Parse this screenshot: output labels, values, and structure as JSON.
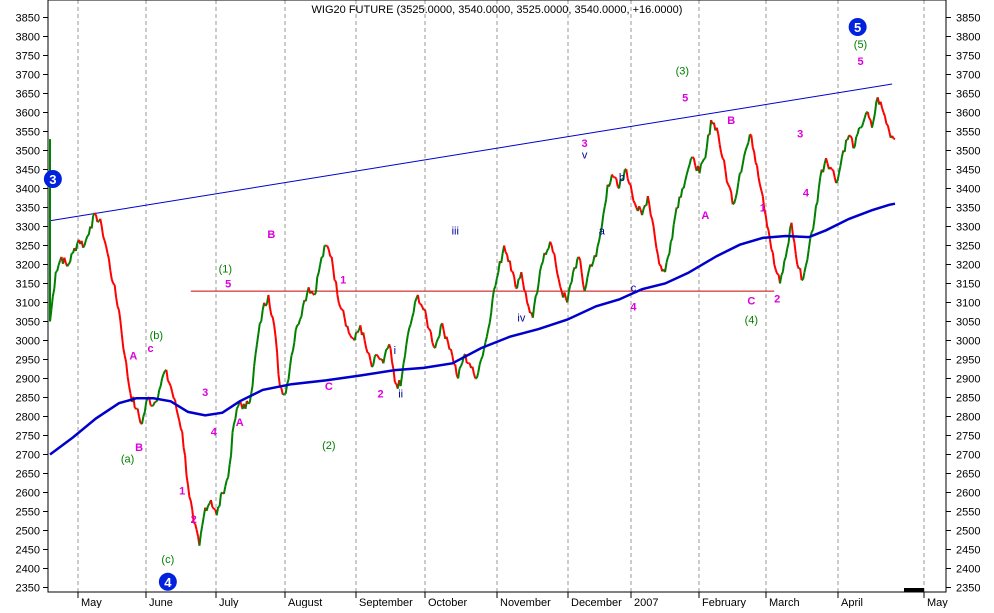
{
  "chart_data": {
    "type": "line",
    "title": "WIG20 FUTURE (3525.0000, 3540.0000, 3525.0000, 3540.0000, +16.0000)",
    "ylim": [
      2325,
      3880
    ],
    "y_ticks": [
      2350,
      2400,
      2450,
      2500,
      2550,
      2600,
      2650,
      2700,
      2750,
      2800,
      2850,
      2900,
      2950,
      3000,
      3050,
      3100,
      3150,
      3200,
      3250,
      3300,
      3350,
      3400,
      3450,
      3500,
      3550,
      3600,
      3650,
      3700,
      3750,
      3800,
      3850
    ],
    "x_ticks": [
      "May",
      "June",
      "July",
      "August",
      "September",
      "October",
      "November",
      "December",
      "2007",
      "February",
      "March",
      "April",
      "May"
    ],
    "grid": true,
    "colors": {
      "up": "#008000",
      "down": "#ff0000",
      "moving_average": "#0000cc",
      "trendline": "#0000cc",
      "support": "#cc0000",
      "magenta": "#dd00dd",
      "green": "#008000",
      "navy": "#000099"
    },
    "series": [
      {
        "kind": "price",
        "values": [
          [
            0,
            3050
          ],
          [
            2,
            3180
          ],
          [
            4,
            3220
          ],
          [
            6,
            3195
          ],
          [
            8,
            3230
          ],
          [
            10,
            3265
          ],
          [
            12,
            3250
          ],
          [
            14,
            3300
          ],
          [
            16,
            3330
          ],
          [
            18,
            3300
          ],
          [
            20,
            3230
          ],
          [
            22,
            3150
          ],
          [
            24,
            3080
          ],
          [
            26,
            2960
          ],
          [
            28,
            2860
          ],
          [
            30,
            2820
          ],
          [
            32,
            2780
          ],
          [
            34,
            2850
          ],
          [
            36,
            2830
          ],
          [
            38,
            2870
          ],
          [
            40,
            2920
          ],
          [
            42,
            2880
          ],
          [
            44,
            2820
          ],
          [
            46,
            2760
          ],
          [
            48,
            2620
          ],
          [
            50,
            2520
          ],
          [
            52,
            2460
          ],
          [
            54,
            2560
          ],
          [
            56,
            2580
          ],
          [
            58,
            2540
          ],
          [
            60,
            2600
          ],
          [
            62,
            2640
          ],
          [
            64,
            2780
          ],
          [
            66,
            2840
          ],
          [
            68,
            2820
          ],
          [
            70,
            2860
          ],
          [
            72,
            2990
          ],
          [
            74,
            3080
          ],
          [
            76,
            3120
          ],
          [
            78,
            3040
          ],
          [
            80,
            2880
          ],
          [
            82,
            2860
          ],
          [
            84,
            2960
          ],
          [
            86,
            3040
          ],
          [
            88,
            3090
          ],
          [
            90,
            3140
          ],
          [
            92,
            3120
          ],
          [
            94,
            3200
          ],
          [
            96,
            3250
          ],
          [
            98,
            3220
          ],
          [
            100,
            3120
          ],
          [
            102,
            3080
          ],
          [
            104,
            3020
          ],
          [
            106,
            3000
          ],
          [
            108,
            3040
          ],
          [
            110,
            2980
          ],
          [
            112,
            2930
          ],
          [
            114,
            2960
          ],
          [
            116,
            2940
          ],
          [
            118,
            2990
          ],
          [
            120,
            2890
          ],
          [
            122,
            2880
          ],
          [
            124,
            2990
          ],
          [
            126,
            3060
          ],
          [
            128,
            3120
          ],
          [
            130,
            3080
          ],
          [
            132,
            3030
          ],
          [
            134,
            2980
          ],
          [
            136,
            3040
          ],
          [
            138,
            3010
          ],
          [
            140,
            2960
          ],
          [
            142,
            2900
          ],
          [
            144,
            2960
          ],
          [
            146,
            2940
          ],
          [
            148,
            2900
          ],
          [
            150,
            2950
          ],
          [
            152,
            3010
          ],
          [
            154,
            3110
          ],
          [
            156,
            3180
          ],
          [
            158,
            3250
          ],
          [
            160,
            3210
          ],
          [
            162,
            3140
          ],
          [
            164,
            3180
          ],
          [
            166,
            3100
          ],
          [
            168,
            3060
          ],
          [
            170,
            3150
          ],
          [
            172,
            3230
          ],
          [
            174,
            3260
          ],
          [
            176,
            3200
          ],
          [
            178,
            3130
          ],
          [
            180,
            3100
          ],
          [
            182,
            3180
          ],
          [
            184,
            3220
          ],
          [
            186,
            3130
          ],
          [
            188,
            3200
          ],
          [
            190,
            3220
          ],
          [
            192,
            3300
          ],
          [
            194,
            3410
          ],
          [
            196,
            3430
          ],
          [
            198,
            3400
          ],
          [
            200,
            3450
          ],
          [
            202,
            3410
          ],
          [
            204,
            3350
          ],
          [
            206,
            3330
          ],
          [
            208,
            3380
          ],
          [
            210,
            3300
          ],
          [
            212,
            3200
          ],
          [
            214,
            3180
          ],
          [
            216,
            3260
          ],
          [
            218,
            3350
          ],
          [
            220,
            3400
          ],
          [
            222,
            3450
          ],
          [
            224,
            3480
          ],
          [
            226,
            3440
          ],
          [
            228,
            3480
          ],
          [
            230,
            3580
          ],
          [
            232,
            3560
          ],
          [
            234,
            3480
          ],
          [
            236,
            3410
          ],
          [
            238,
            3360
          ],
          [
            240,
            3440
          ],
          [
            242,
            3500
          ],
          [
            244,
            3540
          ],
          [
            246,
            3460
          ],
          [
            248,
            3380
          ],
          [
            250,
            3290
          ],
          [
            252,
            3200
          ],
          [
            254,
            3150
          ],
          [
            256,
            3220
          ],
          [
            258,
            3310
          ],
          [
            260,
            3200
          ],
          [
            262,
            3160
          ],
          [
            264,
            3240
          ],
          [
            266,
            3320
          ],
          [
            268,
            3430
          ],
          [
            270,
            3480
          ],
          [
            272,
            3450
          ],
          [
            274,
            3420
          ],
          [
            276,
            3500
          ],
          [
            278,
            3540
          ],
          [
            280,
            3510
          ],
          [
            282,
            3560
          ],
          [
            284,
            3600
          ],
          [
            286,
            3560
          ],
          [
            288,
            3640
          ],
          [
            290,
            3600
          ],
          [
            292,
            3550
          ],
          [
            294,
            3530
          ]
        ]
      },
      {
        "kind": "moving_average",
        "values": [
          [
            0,
            2700
          ],
          [
            8,
            2745
          ],
          [
            16,
            2795
          ],
          [
            24,
            2835
          ],
          [
            30,
            2848
          ],
          [
            36,
            2848
          ],
          [
            42,
            2840
          ],
          [
            48,
            2812
          ],
          [
            54,
            2803
          ],
          [
            60,
            2810
          ],
          [
            66,
            2840
          ],
          [
            74,
            2870
          ],
          [
            84,
            2885
          ],
          [
            96,
            2895
          ],
          [
            108,
            2908
          ],
          [
            120,
            2922
          ],
          [
            130,
            2928
          ],
          [
            140,
            2940
          ],
          [
            150,
            2980
          ],
          [
            160,
            3010
          ],
          [
            170,
            3030
          ],
          [
            180,
            3055
          ],
          [
            190,
            3090
          ],
          [
            198,
            3108
          ],
          [
            206,
            3135
          ],
          [
            214,
            3150
          ],
          [
            222,
            3178
          ],
          [
            232,
            3222
          ],
          [
            240,
            3252
          ],
          [
            248,
            3270
          ],
          [
            256,
            3275
          ],
          [
            264,
            3272
          ],
          [
            270,
            3290
          ],
          [
            278,
            3320
          ],
          [
            286,
            3343
          ],
          [
            292,
            3357
          ],
          [
            294,
            3360
          ]
        ]
      }
    ],
    "trendline": [
      [
        0,
        3315
      ],
      [
        293,
        3675
      ]
    ],
    "support": [
      [
        49,
        3130
      ],
      [
        219,
        3130
      ],
      [
        252,
        3130
      ]
    ],
    "wave_labels": [
      {
        "text": "3",
        "x": 1,
        "y": 3425,
        "style": "circle"
      },
      {
        "text": "4",
        "x": 41,
        "y": 2365,
        "style": "circle"
      },
      {
        "text": "5",
        "x": 281,
        "y": 3825,
        "style": "circle"
      },
      {
        "text": "(a)",
        "x": 27,
        "y": 2690,
        "color": "green"
      },
      {
        "text": "B",
        "x": 31,
        "y": 2720,
        "color": "magenta"
      },
      {
        "text": "A",
        "x": 29,
        "y": 2960,
        "color": "magenta"
      },
      {
        "text": "c",
        "x": 35,
        "y": 2980,
        "color": "magenta"
      },
      {
        "text": "(b)",
        "x": 37,
        "y": 3015,
        "color": "green"
      },
      {
        "text": "(c)",
        "x": 41,
        "y": 2425,
        "color": "green"
      },
      {
        "text": "2",
        "x": 50,
        "y": 2530,
        "color": "magenta"
      },
      {
        "text": "1",
        "x": 46,
        "y": 2605,
        "color": "magenta"
      },
      {
        "text": "3",
        "x": 54,
        "y": 2865,
        "color": "magenta"
      },
      {
        "text": "4",
        "x": 57,
        "y": 2760,
        "color": "magenta"
      },
      {
        "text": "A",
        "x": 66,
        "y": 2785,
        "color": "magenta"
      },
      {
        "text": "(1)",
        "x": 61,
        "y": 3190,
        "color": "green"
      },
      {
        "text": "5",
        "x": 62,
        "y": 3150,
        "color": "magenta"
      },
      {
        "text": "B",
        "x": 77,
        "y": 3280,
        "color": "magenta"
      },
      {
        "text": "C",
        "x": 97,
        "y": 2880,
        "color": "magenta"
      },
      {
        "text": "(2)",
        "x": 97,
        "y": 2725,
        "color": "green"
      },
      {
        "text": "1",
        "x": 102,
        "y": 3160,
        "color": "magenta"
      },
      {
        "text": "2",
        "x": 115,
        "y": 2860,
        "color": "magenta"
      },
      {
        "text": "i",
        "x": 120,
        "y": 2975,
        "color": "navy"
      },
      {
        "text": "ii",
        "x": 122,
        "y": 2860,
        "color": "navy"
      },
      {
        "text": "iii",
        "x": 141,
        "y": 3290,
        "color": "navy"
      },
      {
        "text": "iv",
        "x": 164,
        "y": 3060,
        "color": "navy"
      },
      {
        "text": "3",
        "x": 186,
        "y": 3520,
        "color": "magenta"
      },
      {
        "text": "v",
        "x": 186,
        "y": 3490,
        "color": "navy"
      },
      {
        "text": "b",
        "x": 199,
        "y": 3430,
        "color": "navy"
      },
      {
        "text": "a",
        "x": 192,
        "y": 3290,
        "color": "navy"
      },
      {
        "text": "c",
        "x": 203,
        "y": 3140,
        "color": "navy"
      },
      {
        "text": "4",
        "x": 203,
        "y": 3090,
        "color": "magenta"
      },
      {
        "text": "(3)",
        "x": 220,
        "y": 3710,
        "color": "green"
      },
      {
        "text": "5",
        "x": 221,
        "y": 3640,
        "color": "magenta"
      },
      {
        "text": "B",
        "x": 237,
        "y": 3580,
        "color": "magenta"
      },
      {
        "text": "A",
        "x": 228,
        "y": 3330,
        "color": "magenta"
      },
      {
        "text": "C",
        "x": 244,
        "y": 3105,
        "color": "magenta"
      },
      {
        "text": "(4)",
        "x": 244,
        "y": 3055,
        "color": "green"
      },
      {
        "text": "1",
        "x": 248,
        "y": 3350,
        "color": "magenta"
      },
      {
        "text": "2",
        "x": 253,
        "y": 3110,
        "color": "magenta"
      },
      {
        "text": "3",
        "x": 261,
        "y": 3545,
        "color": "magenta"
      },
      {
        "text": "4",
        "x": 263,
        "y": 3390,
        "color": "magenta"
      },
      {
        "text": "(5)",
        "x": 282,
        "y": 3780,
        "color": "green"
      },
      {
        "text": "5",
        "x": 282,
        "y": 3735,
        "color": "magenta"
      }
    ]
  }
}
